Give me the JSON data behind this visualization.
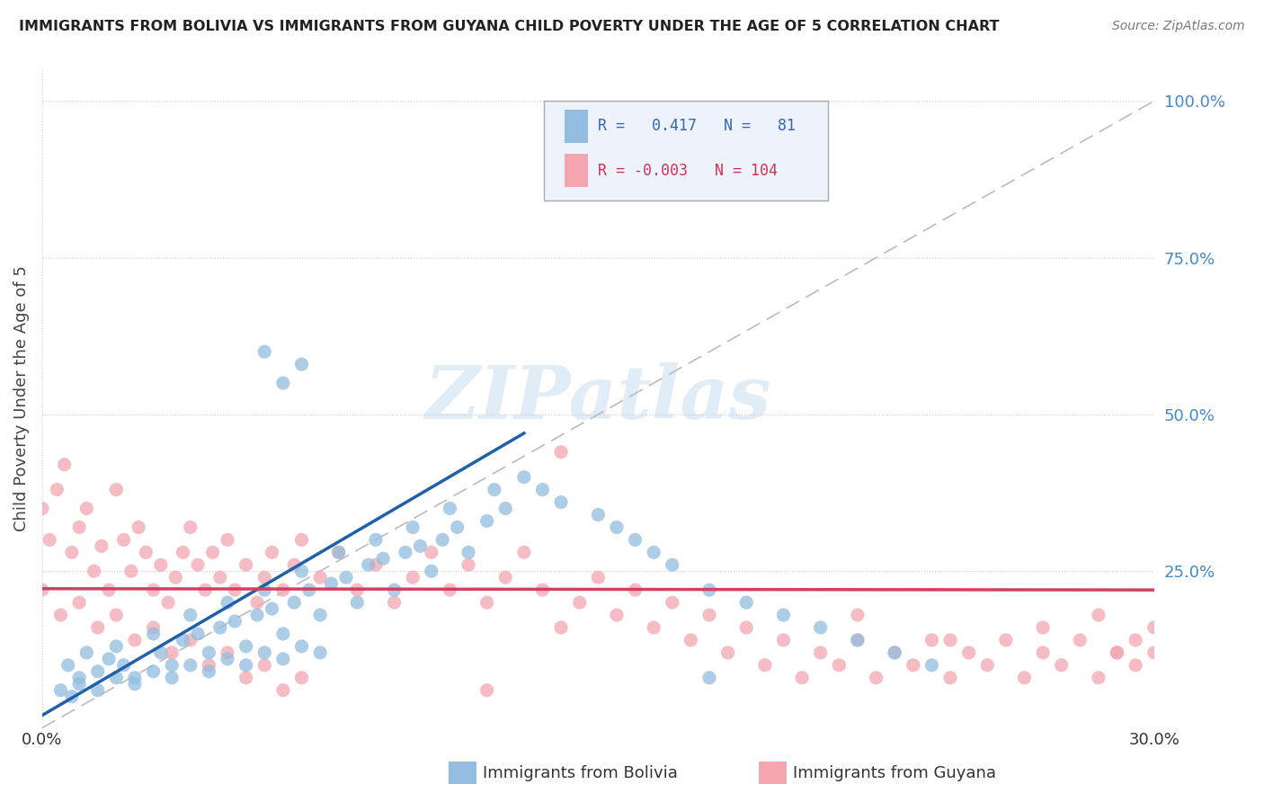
{
  "title": "IMMIGRANTS FROM BOLIVIA VS IMMIGRANTS FROM GUYANA CHILD POVERTY UNDER THE AGE OF 5 CORRELATION CHART",
  "source": "Source: ZipAtlas.com",
  "ylabel": "Child Poverty Under the Age of 5",
  "xlim": [
    0.0,
    0.3
  ],
  "ylim": [
    0.0,
    1.05
  ],
  "xtick_labels": [
    "0.0%",
    "30.0%"
  ],
  "ytick_labels": [
    "100.0%",
    "75.0%",
    "50.0%",
    "25.0%"
  ],
  "ytick_vals": [
    1.0,
    0.75,
    0.5,
    0.25
  ],
  "bolivia_color": "#92bde0",
  "guyana_color": "#f4a6b0",
  "bolivia_line_color": "#2060a8",
  "guyana_line_color": "#d04060",
  "diagonal_color": "#bbbbbb",
  "r_bolivia": 0.417,
  "n_bolivia": 81,
  "r_guyana": -0.003,
  "n_guyana": 104,
  "bolivia_line_x0": 0.0,
  "bolivia_line_y0": 0.02,
  "bolivia_line_x1": 0.13,
  "bolivia_line_y1": 0.47,
  "guyana_line_x0": 0.0,
  "guyana_line_y0": 0.222,
  "guyana_line_x1": 0.3,
  "guyana_line_y1": 0.22,
  "bolivia_scatter_x": [
    0.007,
    0.01,
    0.012,
    0.015,
    0.018,
    0.02,
    0.022,
    0.025,
    0.03,
    0.032,
    0.035,
    0.038,
    0.04,
    0.042,
    0.045,
    0.048,
    0.05,
    0.052,
    0.055,
    0.058,
    0.06,
    0.062,
    0.065,
    0.068,
    0.07,
    0.072,
    0.075,
    0.078,
    0.08,
    0.082,
    0.085,
    0.088,
    0.09,
    0.092,
    0.095,
    0.098,
    0.1,
    0.102,
    0.105,
    0.108,
    0.11,
    0.112,
    0.115,
    0.12,
    0.122,
    0.125,
    0.13,
    0.135,
    0.14,
    0.15,
    0.155,
    0.16,
    0.165,
    0.17,
    0.18,
    0.19,
    0.2,
    0.21,
    0.22,
    0.23,
    0.24,
    0.06,
    0.065,
    0.07,
    0.005,
    0.008,
    0.01,
    0.015,
    0.02,
    0.025,
    0.03,
    0.035,
    0.04,
    0.045,
    0.05,
    0.055,
    0.06,
    0.065,
    0.07,
    0.075,
    0.18
  ],
  "bolivia_scatter_y": [
    0.1,
    0.08,
    0.12,
    0.09,
    0.11,
    0.13,
    0.1,
    0.08,
    0.15,
    0.12,
    0.1,
    0.14,
    0.18,
    0.15,
    0.12,
    0.16,
    0.2,
    0.17,
    0.13,
    0.18,
    0.22,
    0.19,
    0.15,
    0.2,
    0.25,
    0.22,
    0.18,
    0.23,
    0.28,
    0.24,
    0.2,
    0.26,
    0.3,
    0.27,
    0.22,
    0.28,
    0.32,
    0.29,
    0.25,
    0.3,
    0.35,
    0.32,
    0.28,
    0.33,
    0.38,
    0.35,
    0.4,
    0.38,
    0.36,
    0.34,
    0.32,
    0.3,
    0.28,
    0.26,
    0.22,
    0.2,
    0.18,
    0.16,
    0.14,
    0.12,
    0.1,
    0.6,
    0.55,
    0.58,
    0.06,
    0.05,
    0.07,
    0.06,
    0.08,
    0.07,
    0.09,
    0.08,
    0.1,
    0.09,
    0.11,
    0.1,
    0.12,
    0.11,
    0.13,
    0.12,
    0.08
  ],
  "guyana_scatter_x": [
    0.0,
    0.002,
    0.004,
    0.006,
    0.008,
    0.01,
    0.012,
    0.014,
    0.016,
    0.018,
    0.02,
    0.022,
    0.024,
    0.026,
    0.028,
    0.03,
    0.032,
    0.034,
    0.036,
    0.038,
    0.04,
    0.042,
    0.044,
    0.046,
    0.048,
    0.05,
    0.052,
    0.055,
    0.058,
    0.06,
    0.062,
    0.065,
    0.068,
    0.07,
    0.075,
    0.08,
    0.085,
    0.09,
    0.095,
    0.1,
    0.105,
    0.11,
    0.115,
    0.12,
    0.125,
    0.13,
    0.135,
    0.14,
    0.145,
    0.15,
    0.155,
    0.16,
    0.165,
    0.17,
    0.175,
    0.18,
    0.185,
    0.19,
    0.195,
    0.2,
    0.205,
    0.21,
    0.215,
    0.22,
    0.225,
    0.23,
    0.235,
    0.24,
    0.245,
    0.25,
    0.255,
    0.26,
    0.265,
    0.27,
    0.275,
    0.28,
    0.285,
    0.29,
    0.295,
    0.0,
    0.005,
    0.01,
    0.015,
    0.02,
    0.025,
    0.03,
    0.035,
    0.04,
    0.045,
    0.05,
    0.055,
    0.06,
    0.065,
    0.07,
    0.12,
    0.14,
    0.22,
    0.245,
    0.27,
    0.29,
    0.295,
    0.3,
    0.3,
    0.285
  ],
  "guyana_scatter_y": [
    0.35,
    0.3,
    0.38,
    0.42,
    0.28,
    0.32,
    0.35,
    0.25,
    0.29,
    0.22,
    0.38,
    0.3,
    0.25,
    0.32,
    0.28,
    0.22,
    0.26,
    0.2,
    0.24,
    0.28,
    0.32,
    0.26,
    0.22,
    0.28,
    0.24,
    0.3,
    0.22,
    0.26,
    0.2,
    0.24,
    0.28,
    0.22,
    0.26,
    0.3,
    0.24,
    0.28,
    0.22,
    0.26,
    0.2,
    0.24,
    0.28,
    0.22,
    0.26,
    0.2,
    0.24,
    0.28,
    0.22,
    0.44,
    0.2,
    0.24,
    0.18,
    0.22,
    0.16,
    0.2,
    0.14,
    0.18,
    0.12,
    0.16,
    0.1,
    0.14,
    0.08,
    0.12,
    0.1,
    0.14,
    0.08,
    0.12,
    0.1,
    0.14,
    0.08,
    0.12,
    0.1,
    0.14,
    0.08,
    0.12,
    0.1,
    0.14,
    0.08,
    0.12,
    0.1,
    0.22,
    0.18,
    0.2,
    0.16,
    0.18,
    0.14,
    0.16,
    0.12,
    0.14,
    0.1,
    0.12,
    0.08,
    0.1,
    0.06,
    0.08,
    0.06,
    0.16,
    0.18,
    0.14,
    0.16,
    0.12,
    0.14,
    0.12,
    0.16,
    0.18
  ]
}
